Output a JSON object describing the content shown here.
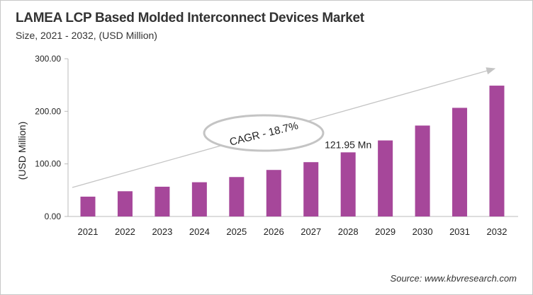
{
  "chart_data": {
    "type": "bar",
    "title": "LAMEA LCP Based Molded Interconnect Devices Market",
    "subtitle": "Size, 2021 - 2032, (USD Million)",
    "xlabel": "",
    "ylabel": "(USD Million)",
    "ylim": [
      0,
      300
    ],
    "yticks": [
      "0.00",
      "100.00",
      "200.00",
      "300.00"
    ],
    "categories": [
      "2021",
      "2022",
      "2023",
      "2024",
      "2025",
      "2026",
      "2027",
      "2028",
      "2029",
      "2030",
      "2031",
      "2032"
    ],
    "values": [
      37.7,
      48.0,
      56.6,
      65.1,
      75.0,
      88.5,
      103.3,
      121.95,
      144.6,
      172.9,
      206.6,
      248.8
    ],
    "bar_color": "#a6479a",
    "grid": false,
    "annotations": {
      "data_label": {
        "category": "2028",
        "text": "121.95 Mn"
      },
      "cagr": "CAGR - 18.7%"
    },
    "source": "Source: www.kbvresearch.com"
  }
}
